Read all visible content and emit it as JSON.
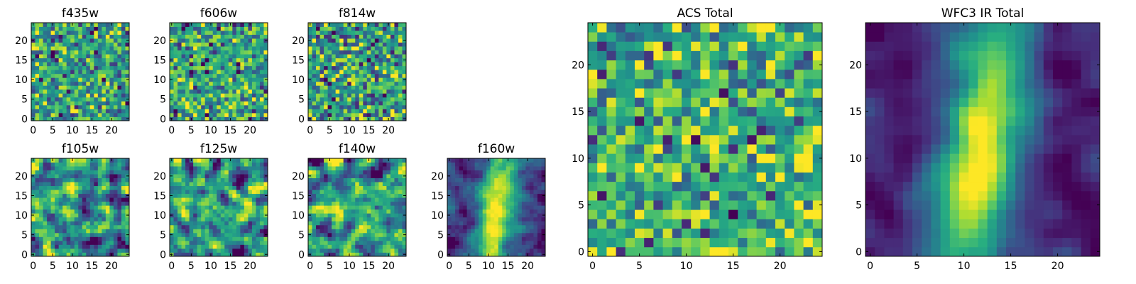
{
  "figure": {
    "colormap": "viridis",
    "colors": {
      "low": "#440154",
      "mid_low": "#31688e",
      "mid": "#21918c",
      "mid_high": "#5ec962",
      "high": "#fde725",
      "axis": "#000000",
      "background": "#ffffff"
    }
  },
  "chart_data": [
    {
      "id": "f435w",
      "type": "heatmap",
      "title": "f435w",
      "grid_size": 25,
      "xlim": [
        0,
        24
      ],
      "ylim": [
        0,
        24
      ],
      "xticks": [
        0,
        5,
        10,
        15,
        20
      ],
      "yticks": [
        0,
        5,
        10,
        15,
        20
      ],
      "pattern": "noise",
      "seed": 11
    },
    {
      "id": "f606w",
      "type": "heatmap",
      "title": "f606w",
      "grid_size": 25,
      "xlim": [
        0,
        24
      ],
      "ylim": [
        0,
        24
      ],
      "xticks": [
        0,
        5,
        10,
        15,
        20
      ],
      "yticks": [
        0,
        5,
        10,
        15,
        20
      ],
      "pattern": "noise",
      "seed": 23
    },
    {
      "id": "f814w",
      "type": "heatmap",
      "title": "f814w",
      "grid_size": 25,
      "xlim": [
        0,
        24
      ],
      "ylim": [
        0,
        24
      ],
      "xticks": [
        0,
        5,
        10,
        15,
        20
      ],
      "yticks": [
        0,
        5,
        10,
        15,
        20
      ],
      "pattern": "noise",
      "seed": 37
    },
    {
      "id": "f105w",
      "type": "heatmap",
      "title": "f105w",
      "grid_size": 25,
      "xlim": [
        0,
        24
      ],
      "ylim": [
        0,
        24
      ],
      "xticks": [
        0,
        5,
        10,
        15,
        20
      ],
      "yticks": [
        0,
        5,
        10,
        15,
        20
      ],
      "pattern": "smooth",
      "seed": 41
    },
    {
      "id": "f125w",
      "type": "heatmap",
      "title": "f125w",
      "grid_size": 25,
      "xlim": [
        0,
        24
      ],
      "ylim": [
        0,
        24
      ],
      "xticks": [
        0,
        5,
        10,
        15,
        20
      ],
      "yticks": [
        0,
        5,
        10,
        15,
        20
      ],
      "pattern": "smooth",
      "seed": 53
    },
    {
      "id": "f140w",
      "type": "heatmap",
      "title": "f140w",
      "grid_size": 25,
      "xlim": [
        0,
        24
      ],
      "ylim": [
        0,
        24
      ],
      "xticks": [
        0,
        5,
        10,
        15,
        20
      ],
      "yticks": [
        0,
        5,
        10,
        15,
        20
      ],
      "pattern": "smooth",
      "seed": 67
    },
    {
      "id": "f160w",
      "type": "heatmap",
      "title": "f160w",
      "grid_size": 25,
      "xlim": [
        0,
        24
      ],
      "ylim": [
        0,
        24
      ],
      "xticks": [
        0,
        5,
        10,
        15,
        20
      ],
      "yticks": [
        0,
        5,
        10,
        15,
        20
      ],
      "pattern": "galaxy",
      "seed": 79
    },
    {
      "id": "acs_total",
      "type": "heatmap",
      "title": "ACS Total",
      "grid_size": 25,
      "xlim": [
        0,
        24
      ],
      "ylim": [
        0,
        24
      ],
      "xticks": [
        0,
        5,
        10,
        15,
        20
      ],
      "yticks": [
        0,
        5,
        10,
        15,
        20
      ],
      "pattern": "noise_bright",
      "seed": 97
    },
    {
      "id": "wfc3_ir_total",
      "type": "heatmap",
      "title": "WFC3 IR Total",
      "grid_size": 25,
      "xlim": [
        0,
        24
      ],
      "ylim": [
        0,
        24
      ],
      "xticks": [
        0,
        5,
        10,
        15,
        20
      ],
      "yticks": [
        0,
        5,
        10,
        15,
        20
      ],
      "pattern": "galaxy_smooth",
      "seed": 101
    }
  ]
}
